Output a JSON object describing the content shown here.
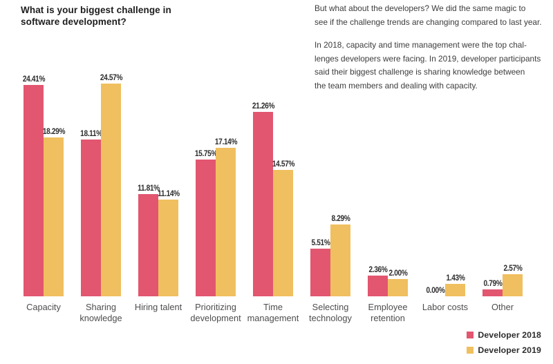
{
  "page": {
    "title_lines": [
      "What is your biggest challenge in",
      "software development?"
    ]
  },
  "intro": {
    "paragraphs": [
      {
        "lines": [
          "But what about the developers? We did the same magic to",
          "see if the challenge trends are changing compared to last year."
        ]
      },
      {
        "lines": [
          "In 2018, capacity and time management were the top chal-",
          "lenges developers were facing. In 2019, developer participants",
          "said their biggest challenge is sharing knowledge between",
          "the team members and dealing with capacity."
        ]
      }
    ]
  },
  "legend": {
    "items": [
      {
        "label": "Developer 2018",
        "color": "#e25670"
      },
      {
        "label": "Developer 2019",
        "color": "#f0bf5f"
      }
    ]
  },
  "chart_data": {
    "type": "bar",
    "title": "What is your biggest challenge in software development?",
    "categories": [
      "Capacity",
      "Sharing knowledge",
      "Hiring talent",
      "Prioritizing development",
      "Time management",
      "Selecting technology",
      "Employee retention",
      "Labor costs",
      "Other"
    ],
    "series": [
      {
        "name": "Developer 2018",
        "color": "#e25670",
        "values": [
          24.41,
          18.11,
          11.81,
          15.75,
          21.26,
          5.51,
          2.36,
          0.0,
          0.79
        ],
        "labels": [
          "24.41%",
          "18.11%",
          "11.81%",
          "15.75%",
          "21.26%",
          "5.51%",
          "2.36%",
          "0.00%",
          "0.79%"
        ]
      },
      {
        "name": "Developer 2019",
        "color": "#f0bf5f",
        "values": [
          18.29,
          24.57,
          11.14,
          17.14,
          14.57,
          8.29,
          2.0,
          1.43,
          2.57
        ],
        "labels": [
          "18.29%",
          "24.57%",
          "11.14%",
          "17.14%",
          "14.57%",
          "8.29%",
          "2.00%",
          "1.43%",
          "2.57%"
        ]
      }
    ],
    "xlabel": "",
    "ylabel": "",
    "ylim": [
      0,
      26.6
    ],
    "grid": false,
    "axis_lines": false,
    "value_labels_shown": true,
    "legend_position": "bottom-right"
  }
}
